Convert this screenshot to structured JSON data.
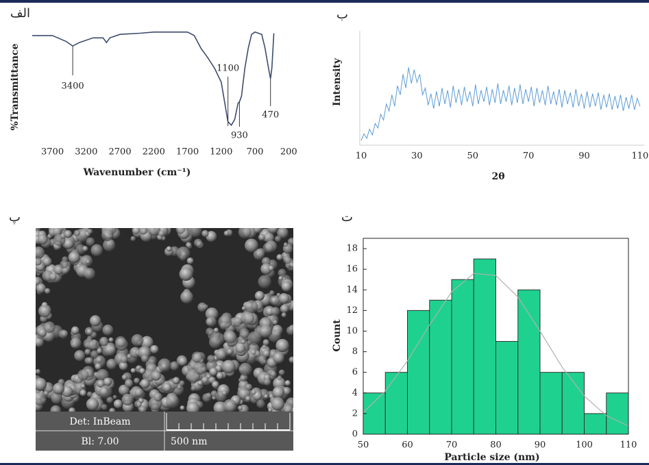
{
  "chart_data": [
    {
      "type": "line",
      "panel_label": "الف",
      "color": "#3c4a6e",
      "x": [
        4000,
        3700,
        3500,
        3400,
        3300,
        3100,
        2950,
        2900,
        2850,
        2700,
        2400,
        2200,
        1900,
        1700,
        1600,
        1500,
        1400,
        1300,
        1200,
        1100,
        1050,
        1000,
        950,
        930,
        900,
        850,
        800,
        750,
        700,
        650,
        600,
        550,
        500,
        470,
        450,
        420
      ],
      "values": [
        93,
        93,
        88,
        84,
        87,
        91,
        91,
        87,
        91,
        94,
        95,
        96,
        96,
        96,
        93,
        82,
        74,
        65,
        53,
        19,
        16,
        21,
        35,
        36,
        41,
        65,
        82,
        94,
        96,
        95,
        94,
        82,
        65,
        56,
        65,
        95
      ],
      "xlim": [
        4000,
        0
      ],
      "ylim": [
        0,
        100
      ],
      "xticks": [
        3700,
        3200,
        2700,
        2200,
        1700,
        1200,
        700,
        200
      ],
      "xlabel": "Wavenumber (cm⁻¹)",
      "ylabel": "%Transmittance",
      "annotations": [
        3400,
        1100,
        930,
        470
      ]
    },
    {
      "type": "line",
      "panel_label": "ب",
      "color": "#5b9bd5",
      "x": [
        10,
        11,
        12,
        13,
        14,
        15,
        16,
        17,
        18,
        19,
        20,
        21,
        22,
        23,
        24,
        25,
        26,
        27,
        28,
        29,
        30,
        31,
        32,
        33,
        34,
        35,
        36,
        37,
        38,
        39,
        40,
        41,
        42,
        43,
        44,
        45,
        46,
        47,
        48,
        49,
        50,
        51,
        52,
        53,
        54,
        55,
        56,
        57,
        58,
        59,
        60,
        61,
        62,
        63,
        64,
        65,
        66,
        67,
        68,
        69,
        70,
        71,
        72,
        73,
        74,
        75,
        76,
        77,
        78,
        79,
        80,
        81,
        82,
        83,
        84,
        85,
        86,
        87,
        88,
        89,
        90,
        91,
        92,
        93,
        94,
        95,
        96,
        97,
        98,
        99,
        100,
        101,
        102,
        103,
        104,
        105,
        106,
        107,
        108,
        109,
        110
      ],
      "values": [
        4,
        10,
        6,
        14,
        9,
        19,
        15,
        27,
        22,
        36,
        30,
        44,
        34,
        52,
        44,
        62,
        50,
        68,
        54,
        66,
        55,
        62,
        44,
        50,
        35,
        45,
        32,
        47,
        34,
        50,
        36,
        48,
        33,
        52,
        37,
        49,
        35,
        51,
        38,
        47,
        34,
        53,
        36,
        48,
        38,
        51,
        35,
        49,
        37,
        54,
        36,
        48,
        38,
        52,
        35,
        50,
        37,
        53,
        36,
        49,
        38,
        51,
        34,
        50,
        37,
        48,
        35,
        52,
        36,
        47,
        35,
        49,
        33,
        48,
        36,
        46,
        33,
        49,
        34,
        45,
        32,
        47,
        33,
        45,
        34,
        46,
        31,
        44,
        33,
        45,
        31,
        43,
        32,
        44,
        30,
        42,
        32,
        44,
        31,
        41,
        34
      ],
      "xlim": [
        9.5,
        111.5
      ],
      "ylim": [
        0,
        100
      ],
      "xticks": [
        10,
        30,
        50,
        70,
        90,
        110
      ],
      "xlabel": "2θ",
      "ylabel": "Intensity"
    },
    {
      "type": "histogram",
      "panel_label": "ت",
      "color": "#1fd18f",
      "bins": [
        50,
        55,
        60,
        65,
        70,
        75,
        80,
        85,
        90,
        95,
        100,
        105,
        110
      ],
      "values": [
        4,
        6,
        12,
        13,
        15,
        17,
        9,
        14,
        6,
        6,
        2,
        4
      ],
      "xlim": [
        50,
        110
      ],
      "ylim": [
        0,
        19
      ],
      "xticks": [
        50,
        60,
        70,
        80,
        90,
        100,
        110
      ],
      "yticks": [
        0,
        2,
        4,
        6,
        8,
        10,
        12,
        14,
        16,
        18
      ],
      "xlabel": "Particle size (nm)",
      "ylabel": "Count",
      "fit": {
        "color": "#b0b0b0",
        "x": [
          50,
          55,
          60,
          65,
          70,
          75,
          80,
          85,
          90,
          95,
          100,
          105,
          110
        ],
        "values": [
          2.1,
          4.2,
          7.1,
          10.6,
          13.8,
          15.6,
          15.4,
          13.3,
          10.0,
          6.5,
          3.7,
          1.8,
          0.8
        ]
      }
    }
  ],
  "image": {
    "panel_label": "پ",
    "detector": "Det: InBeam",
    "bi": "Bl: 7.00",
    "scale": "500 nm"
  }
}
